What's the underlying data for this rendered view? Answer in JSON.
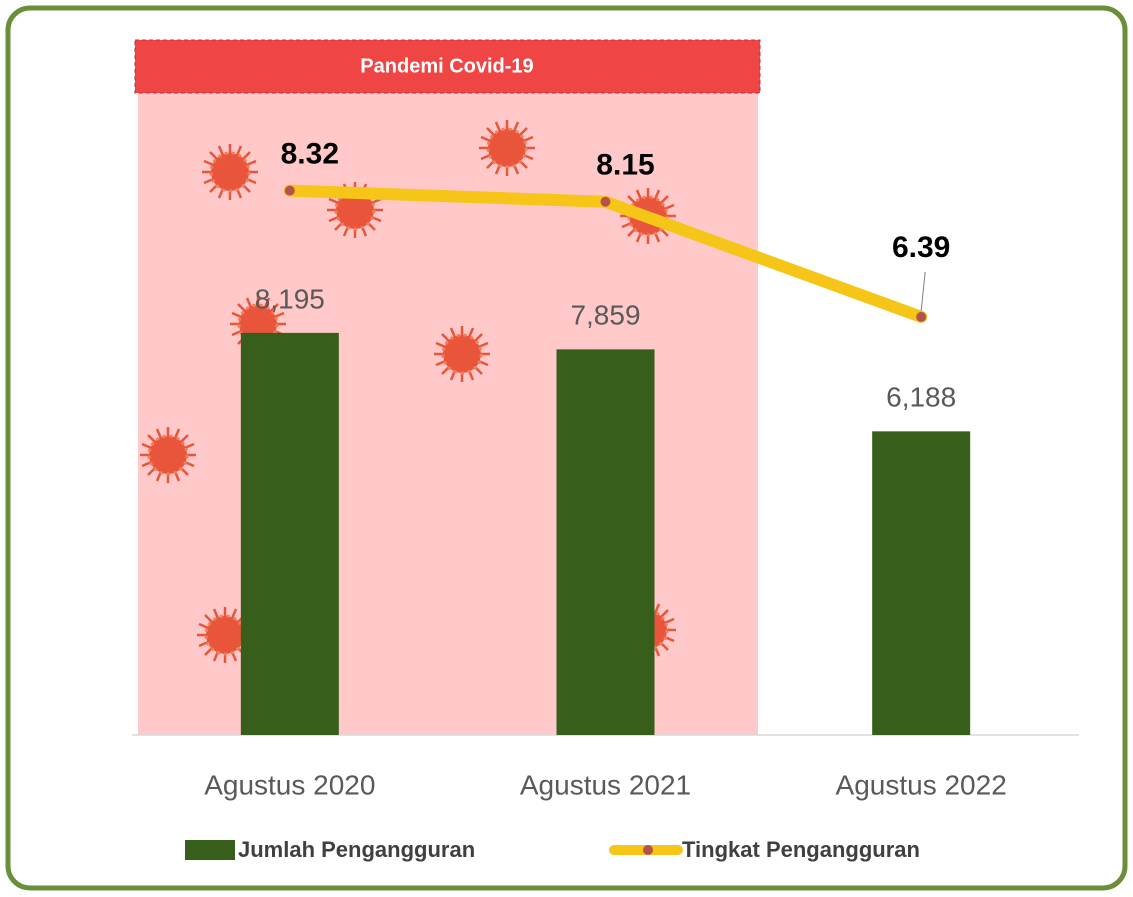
{
  "chart_data": {
    "type": "bar-line",
    "annotation": "Pandemi Covid-19",
    "categories": [
      "Agustus 2020",
      "Agustus 2021",
      "Agustus 2022"
    ],
    "series": [
      {
        "name": "Jumlah Pengangguran",
        "type": "bar",
        "color": "#375f1b",
        "values": [
          8195,
          7859,
          6188
        ],
        "value_labels": [
          "8,195",
          "7,859",
          "6,188"
        ]
      },
      {
        "name": "Tingkat Pengangguran",
        "type": "line",
        "axis": "y2",
        "color": "#f5c518",
        "marker_color": "#b5524a",
        "values": [
          8.32,
          8.15,
          6.39
        ]
      }
    ],
    "ylim": [
      0,
      14000
    ],
    "y2lim": [
      0,
      10.5
    ],
    "grid": false,
    "legend": "bottom"
  }
}
